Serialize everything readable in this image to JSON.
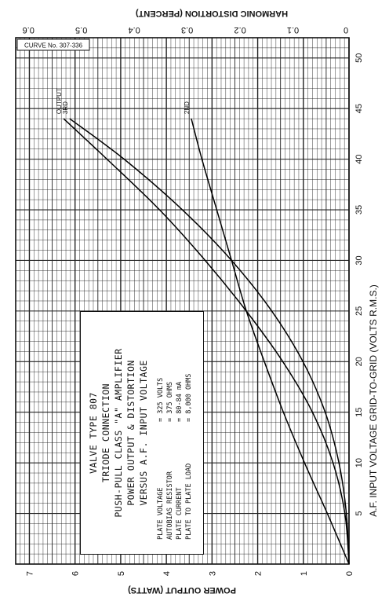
{
  "chart_data": {
    "type": "line",
    "curve_number": "CURVE No. 307-336",
    "xlabel": "A.F. INPUT VOLTAGE  GRID-TO-GRID   (VOLTS R.M.S.)",
    "ylabel_left": "POWER OUTPUT  (WATTS)",
    "ylabel_right": "HARMONIC DISTORTION  (PERCENT)",
    "x_ticks": [
      "0",
      "5",
      "10",
      "15",
      "20",
      "25",
      "30",
      "35",
      "40",
      "45",
      "50"
    ],
    "y_ticks_left": [
      "1",
      "2",
      "3",
      "4",
      "5",
      "6",
      "7"
    ],
    "y_ticks_right": [
      "0.1",
      "0.2",
      "0.3",
      "0.4",
      "0.5",
      "0.6"
    ],
    "xlim": [
      0,
      52
    ],
    "ylim_left": [
      0,
      7.3
    ],
    "ylim_right": [
      0,
      0.63
    ],
    "grid": true,
    "series": [
      {
        "name": "OUTPUT",
        "axis": "left",
        "x": [
          0,
          5,
          10,
          15,
          20,
          25,
          30,
          35,
          40,
          44
        ],
        "y": [
          0,
          0.09,
          0.35,
          0.8,
          1.45,
          2.25,
          3.15,
          4.15,
          5.3,
          6.25
        ]
      },
      {
        "name": "3RD",
        "axis": "right",
        "x": [
          0,
          5,
          10,
          15,
          20,
          25,
          30,
          35,
          40,
          44
        ],
        "y": [
          0,
          0.005,
          0.019,
          0.045,
          0.087,
          0.146,
          0.222,
          0.315,
          0.425,
          0.528
        ]
      },
      {
        "name": "2ND",
        "axis": "right",
        "x": [
          0,
          5,
          10,
          15,
          20,
          25,
          30,
          35,
          40,
          44
        ],
        "y": [
          0,
          0.041,
          0.084,
          0.124,
          0.16,
          0.194,
          0.222,
          0.25,
          0.278,
          0.298
        ]
      }
    ]
  },
  "legend_box": {
    "title_lines": [
      "VALVE TYPE 807",
      "TRIODE CONNECTION",
      "PUSH-PULL CLASS \"A\" AMPLIFIER",
      "POWER OUTPUT & DISTORTION",
      "VERSUS A.F. INPUT VOLTAGE"
    ],
    "conditions": [
      {
        "label": "PLATE VOLTAGE",
        "value": "= 325 VOLTS"
      },
      {
        "label": "AUTOBIAS RESISTOR",
        "value": "= 375 OHMS"
      },
      {
        "label": "PLATE CURRENT",
        "value": "= 80-84 mA"
      },
      {
        "label": "PLATE TO PLATE LOAD",
        "value": "= 8,000 OHMS"
      }
    ]
  }
}
